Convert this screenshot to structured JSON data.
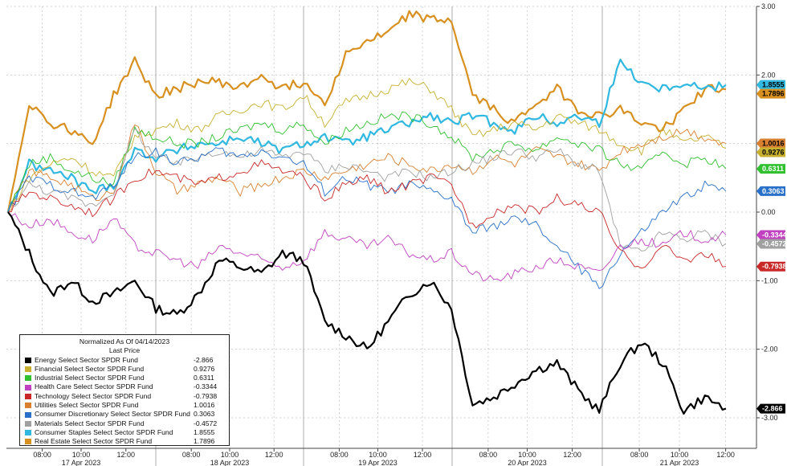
{
  "chart_data": {
    "type": "line",
    "legend": {
      "title": "Normalized As Of 04/14/2023",
      "subtitle": "Last Price",
      "placement": "bottom-left"
    },
    "y_axis": {
      "side": "right",
      "ylim": [
        -3.0,
        3.0
      ],
      "ticks": [
        "3.00",
        "2.00",
        "1.00",
        "0.00",
        "-1.00",
        "-2.00",
        "-3.00"
      ]
    },
    "x_axis": {
      "time_labels": [
        "08:00",
        "10:00",
        "12:00",
        "08:00",
        "10:00",
        "12:00",
        "08:00",
        "10:00",
        "12:00",
        "08:00",
        "10:00",
        "12:00",
        "08:00",
        "10:00",
        "12:00"
      ],
      "day_labels": [
        "17 Apr 2023",
        "18 Apr 2023",
        "19 Apr 2023",
        "20 Apr 2023",
        "21 Apr 2023"
      ]
    },
    "grid": true,
    "series": [
      {
        "name": "Energy Select Sector SPDR Fund",
        "last": "-2.866",
        "color": "#000000",
        "bold": true,
        "y": [
          0.0,
          -0.6,
          -1.2,
          -1.0,
          -1.3,
          -1.2,
          -1.0,
          -1.4,
          -1.5,
          -1.2,
          -0.7,
          -0.8,
          -0.9,
          -0.6,
          -0.7,
          -1.6,
          -1.8,
          -2.0,
          -1.6,
          -1.2,
          -1.0,
          -1.4,
          -2.8,
          -2.7,
          -2.5,
          -2.3,
          -2.2,
          -2.6,
          -2.9,
          -2.2,
          -1.9,
          -2.2,
          -2.9,
          -2.7,
          -2.866
        ]
      },
      {
        "name": "Financial Select Sector SPDR Fund",
        "last": "0.9276",
        "color": "#c8b030",
        "y": [
          0.0,
          0.5,
          0.7,
          0.8,
          0.6,
          0.5,
          1.1,
          1.2,
          1.3,
          1.2,
          1.4,
          1.5,
          1.6,
          1.5,
          1.7,
          1.3,
          1.6,
          1.7,
          1.8,
          1.9,
          1.8,
          1.5,
          1.1,
          1.2,
          1.3,
          1.2,
          1.4,
          1.3,
          1.2,
          1.0,
          0.9,
          1.2,
          1.0,
          1.1,
          0.9276
        ]
      },
      {
        "name": "Industrial Select Sector SPDR Fund",
        "last": "0.6311",
        "color": "#30c030",
        "y": [
          0.0,
          0.7,
          0.8,
          0.6,
          0.5,
          0.4,
          1.2,
          1.1,
          1.0,
          1.0,
          1.1,
          1.2,
          1.3,
          1.2,
          1.3,
          1.0,
          1.2,
          1.3,
          1.4,
          1.4,
          1.3,
          1.1,
          0.8,
          0.9,
          1.0,
          0.9,
          1.1,
          1.0,
          0.9,
          0.7,
          0.6,
          0.9,
          0.7,
          0.8,
          0.6311
        ]
      },
      {
        "name": "Health Care Select Sector SPDR Fund",
        "last": "-0.3344",
        "color": "#c040c0",
        "y": [
          0.0,
          -0.2,
          -0.1,
          -0.3,
          -0.4,
          -0.1,
          -0.5,
          -0.6,
          -0.7,
          -0.8,
          -0.5,
          -0.6,
          -0.7,
          -0.8,
          -0.7,
          -0.3,
          -0.4,
          -0.5,
          -0.4,
          -0.6,
          -0.7,
          -0.6,
          -0.9,
          -1.0,
          -0.9,
          -0.8,
          -0.7,
          -0.8,
          -0.9,
          -0.5,
          -0.4,
          -0.5,
          -0.3,
          -0.4,
          -0.3344
        ]
      },
      {
        "name": "Technology Select Sector SPDR Fund",
        "last": "-0.7938",
        "color": "#c82828",
        "y": [
          0.0,
          0.3,
          0.2,
          0.1,
          0.0,
          0.2,
          0.5,
          0.6,
          0.5,
          0.4,
          0.5,
          0.6,
          0.7,
          0.6,
          0.5,
          0.2,
          0.4,
          0.5,
          0.3,
          0.4,
          0.5,
          0.4,
          -0.2,
          0.0,
          0.1,
          0.0,
          0.2,
          0.1,
          0.0,
          -0.6,
          -0.8,
          -0.5,
          -0.7,
          -0.6,
          -0.7938
        ]
      },
      {
        "name": "Utilities Select Sector SPDR Fund",
        "last": "1.0016",
        "color": "#d88030",
        "y": [
          0.0,
          0.6,
          0.5,
          0.4,
          0.2,
          0.3,
          1.3,
          0.6,
          0.3,
          0.4,
          0.5,
          0.3,
          0.4,
          0.5,
          0.6,
          0.5,
          0.6,
          0.7,
          0.8,
          0.7,
          0.6,
          0.7,
          0.6,
          0.8,
          0.7,
          0.9,
          0.8,
          0.7,
          0.6,
          0.9,
          1.0,
          1.1,
          1.2,
          1.1,
          1.0016
        ]
      },
      {
        "name": "Consumer Discretionary Select Sector SPDR Fund",
        "last": "0.3063",
        "color": "#2870c8",
        "y": [
          0.0,
          0.5,
          0.4,
          0.3,
          0.2,
          0.4,
          0.8,
          0.9,
          0.7,
          0.8,
          0.9,
          0.8,
          0.9,
          0.8,
          0.7,
          0.3,
          0.5,
          0.4,
          0.3,
          0.4,
          0.3,
          0.2,
          -0.3,
          -0.2,
          -0.1,
          -0.2,
          -0.5,
          -0.8,
          -1.1,
          -0.6,
          -0.3,
          0.0,
          0.2,
          0.4,
          0.3063
        ]
      },
      {
        "name": "Materials Select Sector SPDR Fund",
        "last": "-0.4572",
        "color": "#a0a0a0",
        "y": [
          0.0,
          0.4,
          0.3,
          0.2,
          0.1,
          0.3,
          1.2,
          0.8,
          0.7,
          0.8,
          0.9,
          0.8,
          0.9,
          0.8,
          0.9,
          0.6,
          0.7,
          0.6,
          0.5,
          0.6,
          0.5,
          0.6,
          0.7,
          0.8,
          0.9,
          0.8,
          0.9,
          0.7,
          0.6,
          -0.5,
          -0.6,
          -0.3,
          -0.4,
          -0.3,
          -0.4572
        ]
      },
      {
        "name": "Consumer Staples Select Sector SPDR Fund",
        "last": "1.8555",
        "color": "#30b8e0",
        "bold": true,
        "y": [
          0.0,
          0.7,
          0.6,
          0.5,
          0.3,
          0.4,
          0.9,
          0.8,
          0.9,
          1.0,
          1.0,
          1.1,
          1.0,
          0.9,
          1.0,
          1.1,
          1.0,
          1.1,
          1.2,
          1.3,
          1.4,
          1.3,
          1.4,
          1.3,
          1.2,
          1.4,
          1.3,
          1.4,
          1.3,
          2.2,
          1.9,
          1.8,
          1.9,
          1.8,
          1.8555
        ]
      },
      {
        "name": "Real Estate Select Sector SPDR Fund",
        "last": "1.7896",
        "color": "#d89020",
        "bold": true,
        "y": [
          0.0,
          1.6,
          1.3,
          1.2,
          1.0,
          1.7,
          2.2,
          1.7,
          1.8,
          1.9,
          1.9,
          1.8,
          2.0,
          1.8,
          1.9,
          1.6,
          2.3,
          2.5,
          2.6,
          2.9,
          2.8,
          2.8,
          1.7,
          1.5,
          1.3,
          1.6,
          1.8,
          1.5,
          1.4,
          1.5,
          1.3,
          1.2,
          1.5,
          1.8,
          1.7896
        ]
      }
    ]
  }
}
